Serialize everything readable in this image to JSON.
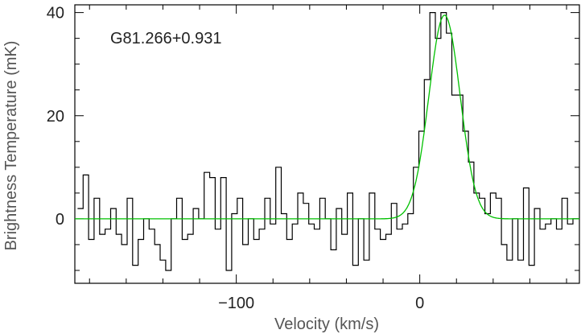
{
  "chart_data": {
    "type": "line",
    "title": "",
    "annotation": "G81.266+0.931",
    "xlabel": "Velocity (km/s)",
    "ylabel": "Brightness Temperature (mK)",
    "xlim": [
      -188,
      87
    ],
    "ylim": [
      -12.5,
      41.5
    ],
    "x_ticks": [
      -100,
      0
    ],
    "x_tick_labels": [
      "−100",
      "0"
    ],
    "y_ticks": [
      0,
      20,
      40
    ],
    "y_tick_labels": [
      "0",
      "20",
      "40"
    ],
    "grid": false,
    "legend": "none",
    "colors": {
      "spectrum": "#000000",
      "fit": "#00c000",
      "frame": "#000000"
    },
    "series": [
      {
        "style": "step",
        "x": [
          -185,
          -182,
          -179,
          -176,
          -173,
          -170,
          -167,
          -164,
          -161,
          -158,
          -155,
          -152,
          -149,
          -146,
          -143,
          -140,
          -137,
          -134,
          -131,
          -128,
          -125,
          -122,
          -119,
          -116,
          -113,
          -110,
          -107,
          -104,
          -101,
          -98,
          -95,
          -92,
          -89,
          -86,
          -83,
          -80,
          -77,
          -74,
          -71,
          -68,
          -65,
          -62,
          -59,
          -56,
          -53,
          -50,
          -47,
          -44,
          -41,
          -38,
          -35,
          -32,
          -29,
          -26,
          -23,
          -20,
          -17,
          -14,
          -11,
          -8,
          -5,
          -2,
          1,
          4,
          7,
          10,
          13,
          16,
          19,
          22,
          25,
          28,
          31,
          34,
          37,
          40,
          43,
          46,
          49,
          52,
          55,
          58,
          61,
          64,
          67,
          70,
          73,
          76,
          79,
          82,
          85
        ],
        "y": [
          2,
          8.5,
          -4,
          4,
          -3,
          -2,
          2,
          -3,
          -5,
          4,
          -9,
          -4,
          0,
          -2,
          -5,
          -8,
          -10,
          0,
          4,
          -4,
          -3,
          2,
          0,
          9,
          8,
          -2,
          8,
          -10,
          1,
          4,
          -5,
          0,
          -4,
          -2,
          4,
          -1,
          10,
          1,
          -4,
          -1,
          5,
          3,
          -1,
          -2,
          4,
          0,
          -6,
          2,
          -3,
          5,
          -9,
          0,
          -8,
          5,
          -2,
          -4,
          -3,
          3,
          -2,
          -1,
          1,
          10,
          17,
          27,
          40,
          35,
          40,
          36,
          24,
          24,
          17,
          11,
          5,
          4,
          1,
          5,
          4,
          -5,
          -8,
          0,
          -8,
          6,
          -9,
          2,
          -2,
          -1,
          0,
          -2,
          4,
          -1,
          0
        ]
      },
      {
        "style": "gaussian",
        "amplitude": 39.5,
        "center": 13.5,
        "fwhm": 20,
        "baseline": 0
      }
    ]
  }
}
